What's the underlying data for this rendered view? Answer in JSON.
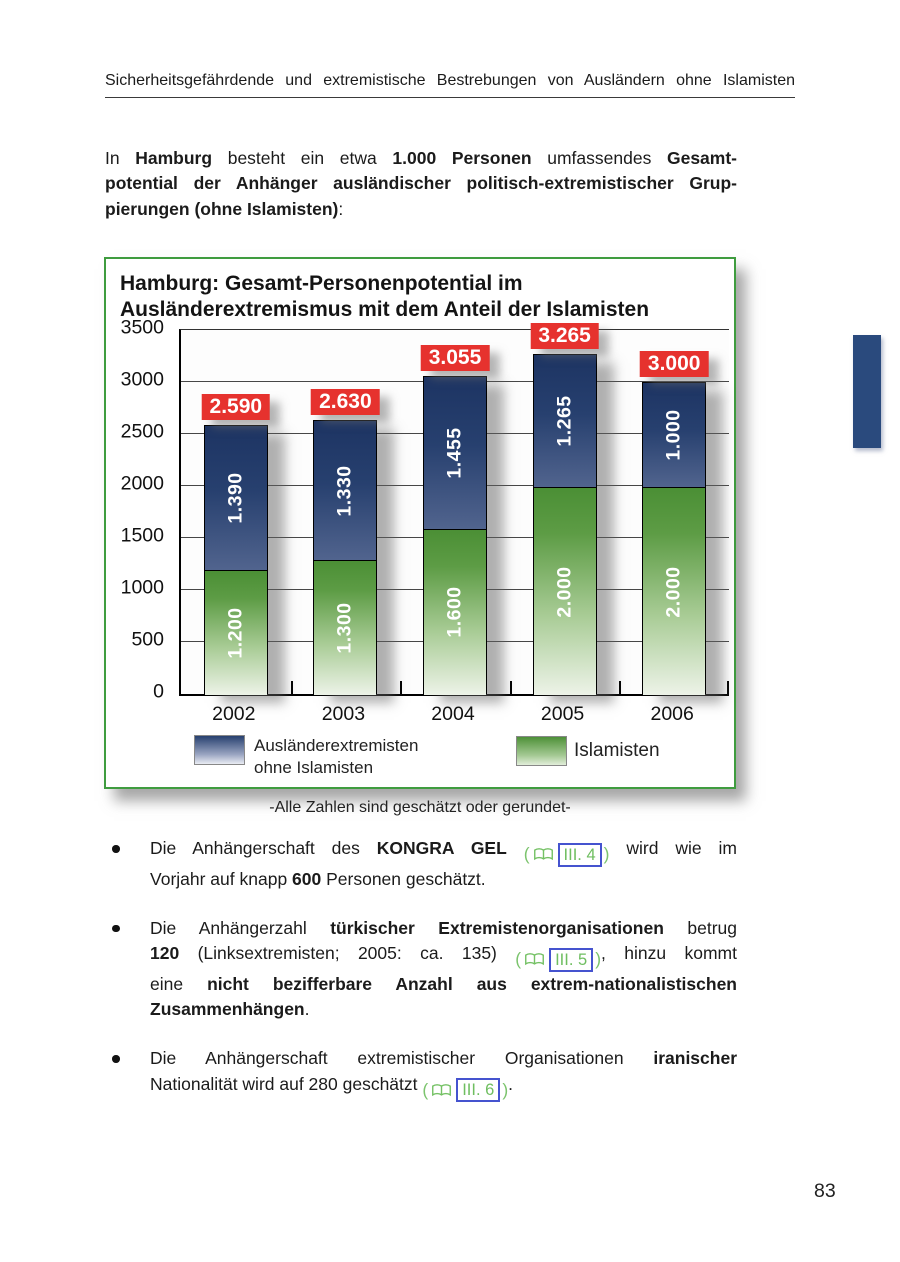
{
  "header": {
    "title": "Sicherheitsgefährdende und extremistische Bestrebungen von Ausländern ohne Islamisten"
  },
  "intro": {
    "lines": [
      {
        "justify": true,
        "segments": [
          {
            "text": "In "
          },
          {
            "text": "Hamburg",
            "bold": true
          },
          {
            "text": " besteht ein etwa "
          },
          {
            "text": "1.000 Personen",
            "bold": true
          },
          {
            "text": " umfassendes "
          },
          {
            "text": "Gesamt-",
            "bold": true
          }
        ]
      },
      {
        "justify": true,
        "segments": [
          {
            "text": "potential der Anhänger ausländischer politisch-extremistischer Grup-",
            "bold": true
          }
        ]
      },
      {
        "justify": false,
        "segments": [
          {
            "text": "pierungen (ohne Islamisten)",
            "bold": true
          },
          {
            "text": ":"
          }
        ]
      }
    ]
  },
  "chart": {
    "title_lines": [
      "Hamburg: Gesamt-Personenpotential im",
      "Ausländerextremismus mit dem Anteil der Islamisten"
    ],
    "note": "-Alle Zahlen sind geschätzt oder gerundet-",
    "legend": {
      "items": [
        {
          "name": "Ausländerextremisten ohne Islamisten",
          "label_lines": [
            "Ausländerextremisten",
            "ohne Islamisten"
          ],
          "color": "#24386b"
        },
        {
          "name": "Islamisten",
          "label_lines": [
            "Islamisten"
          ],
          "color": "#4e9138"
        }
      ]
    }
  },
  "chart_data": {
    "type": "bar",
    "stacked": true,
    "title": "Hamburg: Gesamt-Personenpotential im Ausländerextremismus mit dem Anteil der Islamisten",
    "categories": [
      "2002",
      "2003",
      "2004",
      "2005",
      "2006"
    ],
    "series": [
      {
        "name": "Islamisten",
        "color": "#4e9138",
        "values": [
          1200,
          1300,
          1600,
          2000,
          2000
        ],
        "value_labels": [
          "1.200",
          "1.300",
          "1.600",
          "2.000",
          "2.000"
        ]
      },
      {
        "name": "Ausländerextremisten ohne Islamisten",
        "color": "#24386b",
        "values": [
          1390,
          1330,
          1455,
          1265,
          1000
        ],
        "value_labels": [
          "1.390",
          "1.330",
          "1.455",
          "1.265",
          "1.000"
        ]
      }
    ],
    "totals": [
      2590,
      2630,
      3055,
      3265,
      3000
    ],
    "total_labels": [
      "2.590",
      "2.630",
      "3.055",
      "3.265",
      "3.000"
    ],
    "ylim": [
      0,
      3500
    ],
    "yticks": [
      0,
      500,
      1000,
      1500,
      2000,
      2500,
      3000,
      3500
    ],
    "grid": true,
    "legend_position": "bottom",
    "note": "-Alle Zahlen sind geschätzt oder gerundet-"
  },
  "bullets": [
    {
      "lines": [
        {
          "justify": true,
          "segments": [
            {
              "text": "Die Anhängerschaft des "
            },
            {
              "text": "KONGRA GEL",
              "bold": true
            },
            {
              "text": " "
            },
            {
              "ref": true,
              "open": "(",
              "label": "III. 4",
              "close": ")"
            },
            {
              "text": " wird wie im"
            }
          ]
        },
        {
          "justify": false,
          "segments": [
            {
              "text": "Vorjahr auf knapp "
            },
            {
              "text": "600",
              "bold": true
            },
            {
              "text": " Personen geschätzt."
            }
          ]
        }
      ]
    },
    {
      "lines": [
        {
          "justify": true,
          "segments": [
            {
              "text": "Die Anhängerzahl "
            },
            {
              "text": "türkischer Extremistenorganisationen",
              "bold": true
            },
            {
              "text": " betrug"
            }
          ]
        },
        {
          "justify": true,
          "segments": [
            {
              "text": "120",
              "bold": true
            },
            {
              "text": " (Linksextremisten; 2005: ca. 135) "
            },
            {
              "ref": true,
              "open": "(",
              "label": "III. 5",
              "close": ")"
            },
            {
              "text": ", hinzu kommt"
            }
          ]
        },
        {
          "justify": true,
          "segments": [
            {
              "text": "eine "
            },
            {
              "text": "nicht bezifferbare Anzahl aus extrem-nationalistischen",
              "bold": true
            }
          ]
        },
        {
          "justify": false,
          "segments": [
            {
              "text": "Zusammenhängen",
              "bold": true
            },
            {
              "text": "."
            }
          ]
        }
      ]
    },
    {
      "lines": [
        {
          "justify": true,
          "segments": [
            {
              "text": "Die Anhängerschaft extremistischer Organisationen "
            },
            {
              "text": "iranischer",
              "bold": true
            }
          ]
        },
        {
          "justify": false,
          "segments": [
            {
              "text": "Nationalität wird auf 280 geschätzt "
            },
            {
              "ref": true,
              "open": "(",
              "label": "III. 6",
              "close": ")"
            },
            {
              "text": "."
            }
          ]
        }
      ]
    }
  ],
  "page_number": "83",
  "colors": {
    "total_label_bg": "#e6322e",
    "bar_blue": "#24386b",
    "bar_green": "#4e9138",
    "chart_border": "#3f9c3f",
    "ref_border": "#4553cf",
    "ref_text": "#6fbe60",
    "side_tab": "#2a4a7d"
  }
}
